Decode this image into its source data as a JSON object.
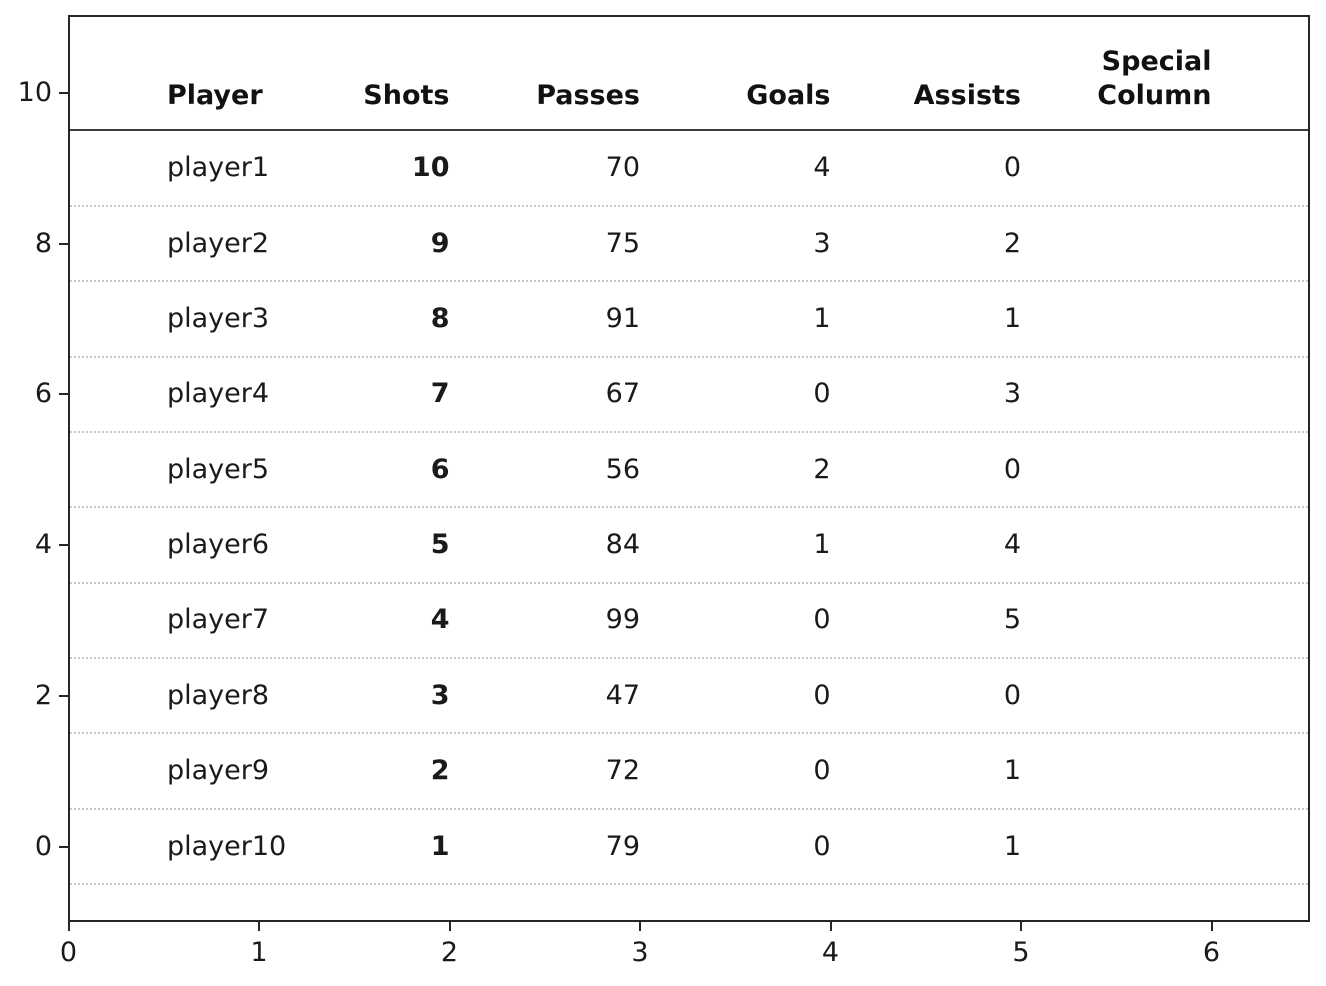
{
  "figure": {
    "background": "#ffffff",
    "text_color": "#1a1a1a",
    "spine_color": "#262626",
    "separator_color": "#c9c9c9",
    "header_rule_color": "#3d3d3d"
  },
  "chart_data": {
    "type": "table",
    "columns": [
      {
        "key": "player",
        "label": "Player"
      },
      {
        "key": "shots",
        "label": "Shots"
      },
      {
        "key": "passes",
        "label": "Passes"
      },
      {
        "key": "goals",
        "label": "Goals"
      },
      {
        "key": "assists",
        "label": "Assists"
      },
      {
        "key": "special",
        "label": "Special\nColumn"
      }
    ],
    "emphasized_column": "Shots",
    "rows": [
      {
        "player": "player1",
        "shots": 10,
        "passes": 70,
        "goals": 4,
        "assists": 0,
        "special": ""
      },
      {
        "player": "player2",
        "shots": 9,
        "passes": 75,
        "goals": 3,
        "assists": 2,
        "special": ""
      },
      {
        "player": "player3",
        "shots": 8,
        "passes": 91,
        "goals": 1,
        "assists": 1,
        "special": ""
      },
      {
        "player": "player4",
        "shots": 7,
        "passes": 67,
        "goals": 0,
        "assists": 3,
        "special": ""
      },
      {
        "player": "player5",
        "shots": 6,
        "passes": 56,
        "goals": 2,
        "assists": 0,
        "special": ""
      },
      {
        "player": "player6",
        "shots": 5,
        "passes": 84,
        "goals": 1,
        "assists": 4,
        "special": ""
      },
      {
        "player": "player7",
        "shots": 4,
        "passes": 99,
        "goals": 0,
        "assists": 5,
        "special": ""
      },
      {
        "player": "player8",
        "shots": 3,
        "passes": 47,
        "goals": 0,
        "assists": 0,
        "special": ""
      },
      {
        "player": "player9",
        "shots": 2,
        "passes": 72,
        "goals": 0,
        "assists": 1,
        "special": ""
      },
      {
        "player": "player10",
        "shots": 1,
        "passes": 79,
        "goals": 0,
        "assists": 1,
        "special": ""
      }
    ],
    "x_ticks": [
      0,
      1,
      2,
      3,
      4,
      5,
      6
    ],
    "y_ticks": [
      10,
      8,
      6,
      4,
      2,
      0
    ],
    "xlim": [
      0,
      6.52
    ],
    "ylim": [
      -1,
      11
    ],
    "grid": "dotted horizontal separators between rows",
    "legend": "none"
  }
}
